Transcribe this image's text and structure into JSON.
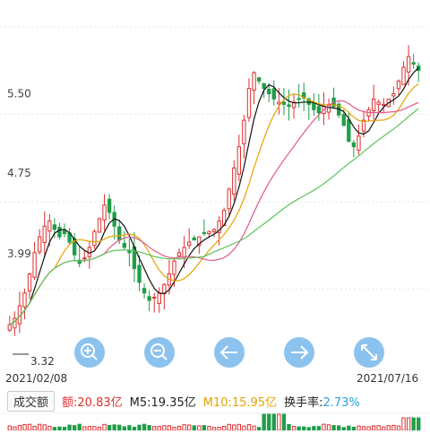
{
  "price_chart": {
    "y_axis": {
      "labels": [
        "5.50",
        "4.75",
        "3.99"
      ],
      "values": [
        5.5,
        4.75,
        3.99
      ]
    },
    "low_marker": "3.32",
    "date_start": "2021/02/08",
    "date_end": "2021/07/16",
    "colors": {
      "up": "#e03030",
      "down": "#1e9e48",
      "ma5": "#111111",
      "ma10": "#e8a200",
      "ma20": "#e05a8a",
      "ma60": "#5cc45c",
      "grid": "#e6e6e6",
      "btn": "#2d8fe0"
    }
  },
  "controls": {
    "items": [
      {
        "name": "zoom-in-button",
        "icon": "zoom-in-icon"
      },
      {
        "name": "zoom-out-button",
        "icon": "zoom-out-icon"
      },
      {
        "name": "pan-left-button",
        "icon": "arrow-left-icon"
      },
      {
        "name": "pan-right-button",
        "icon": "arrow-right-icon"
      },
      {
        "name": "fullscreen-button",
        "icon": "expand-icon"
      }
    ]
  },
  "volume_panel": {
    "button_label": "成交额",
    "amount_label": "额:",
    "amount_value": "20.83亿",
    "m5_label": "M5:",
    "m5_value": "19.35亿",
    "m10_label": "M10:",
    "m10_value": "15.95亿",
    "turnover_label": "换手率:",
    "turnover_value": "2.73%"
  },
  "chart_data": {
    "type": "candlestick",
    "x_range": [
      "2021/02/08",
      "2021/07/16"
    ],
    "ylim": [
      3.0,
      6.3
    ],
    "y_ticks": [
      3.99,
      4.75,
      5.5
    ],
    "close_approx": [
      3.32,
      3.38,
      3.5,
      3.62,
      3.8,
      4.0,
      4.15,
      4.25,
      4.3,
      4.22,
      4.15,
      4.18,
      4.1,
      3.98,
      3.9,
      3.95,
      4.05,
      4.2,
      4.32,
      4.45,
      4.38,
      4.25,
      4.12,
      4.05,
      4.0,
      3.85,
      3.72,
      3.62,
      3.55,
      3.58,
      3.62,
      3.7,
      3.8,
      3.92,
      4.0,
      4.05,
      4.1,
      4.12,
      4.15,
      4.18,
      4.2,
      4.22,
      4.3,
      4.4,
      4.6,
      4.8,
      5.0,
      5.25,
      5.55,
      5.7,
      5.62,
      5.55,
      5.5,
      5.45,
      5.42,
      5.4,
      5.38,
      5.42,
      5.45,
      5.46,
      5.4,
      5.35,
      5.32,
      5.38,
      5.4,
      5.38,
      5.3,
      5.2,
      5.05,
      5.0,
      5.1,
      5.25,
      5.35,
      5.45,
      5.42,
      5.4,
      5.45,
      5.5,
      5.62,
      5.75,
      5.85,
      5.78,
      5.72
    ],
    "series": [
      {
        "name": "M5"
      },
      {
        "name": "M10"
      }
    ]
  }
}
